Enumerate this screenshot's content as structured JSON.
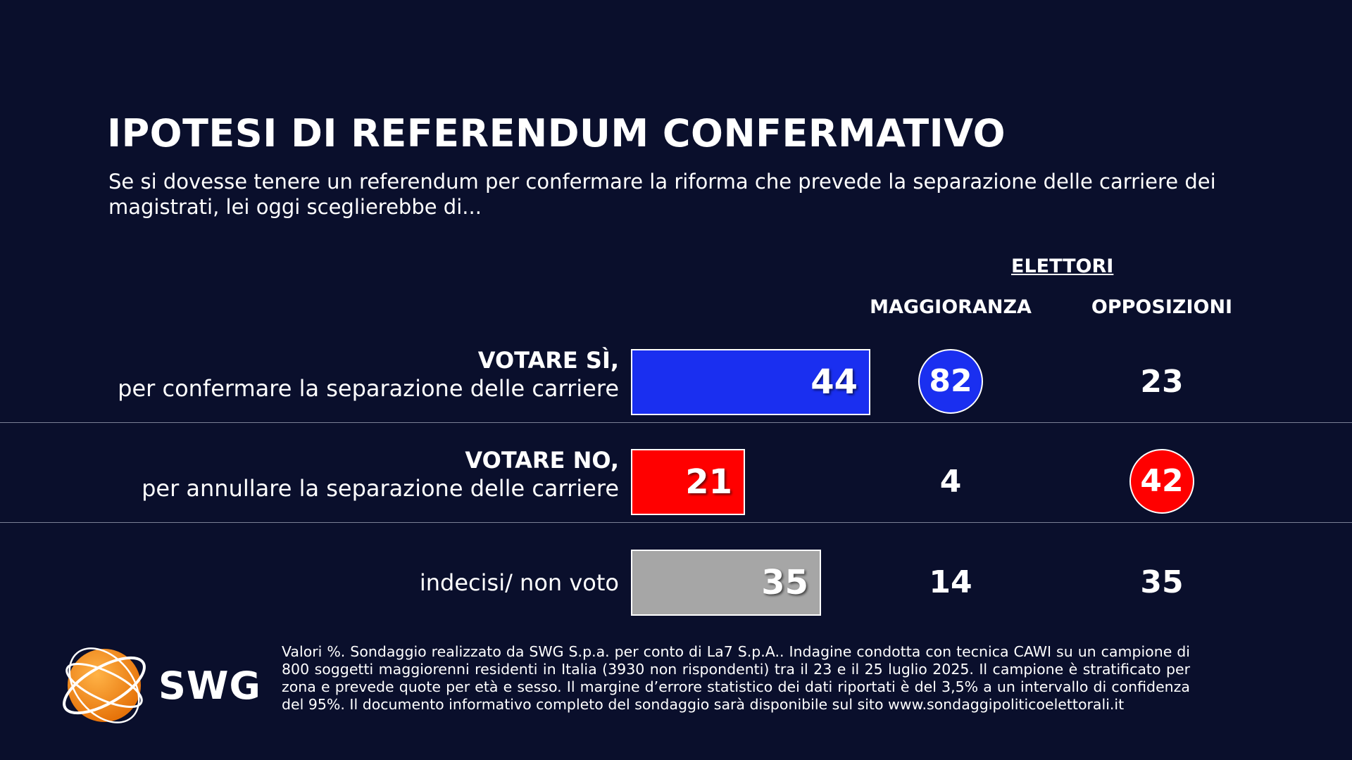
{
  "title": "IPOTESI DI REFERENDUM CONFERMATIVO",
  "subtitle": "Se si dovesse tenere un referendum per confermare la riforma che prevede la separazione delle carriere dei magistrati, lei oggi sceglierebbe di...",
  "column_group": "ELETTORI",
  "columns": [
    "MAGGIORANZA",
    "OPPOSIZIONI"
  ],
  "colors": {
    "background": "#0a0f2c",
    "yes": "#1a2ff0",
    "no": "#ff0000",
    "undecided": "#a6a6a6",
    "logo_orange": "#f7941d"
  },
  "chart_data": {
    "type": "bar",
    "categories": [
      "VOTARE SÌ, per confermare la separazione delle carriere",
      "VOTARE NO, per annullare la separazione delle carriere",
      "indecisi/ non voto"
    ],
    "values": [
      44,
      21,
      35
    ],
    "xlim": [
      0,
      44
    ],
    "rows": [
      {
        "label_strong": "VOTARE SÌ,",
        "label": "per confermare la separazione delle carriere",
        "total": "44",
        "maggioranza": "82",
        "opposizioni": "23",
        "highlight": "maggioranza",
        "color": "#1a2ff0"
      },
      {
        "label_strong": "VOTARE NO,",
        "label": "per annullare la separazione delle carriere",
        "total": "21",
        "maggioranza": "4",
        "opposizioni": "42",
        "highlight": "opposizioni",
        "color": "#ff0000"
      },
      {
        "label_strong": "",
        "label": "indecisi/ non voto",
        "total": "35",
        "maggioranza": "14",
        "opposizioni": "35",
        "highlight": "",
        "color": "#a6a6a6"
      }
    ]
  },
  "logo": {
    "text": "SWG",
    "icon": "globe-icon"
  },
  "footnote": "Valori %. Sondaggio realizzato da SWG S.p.a. per conto di La7 S.p.A.. Indagine condotta con tecnica CAWI su un campione di 800 soggetti maggiorenni residenti in Italia (3930 non rispondenti) tra il 23 e il 25 luglio 2025. Il campione è stratificato per zona e prevede quote per età e sesso. Il margine d’errore statistico dei dati riportati è del 3,5% a un intervallo di confidenza del 95%. Il documento informativo completo del sondaggio sarà disponibile sul sito www.sondaggipoliticoelettorali.it"
}
